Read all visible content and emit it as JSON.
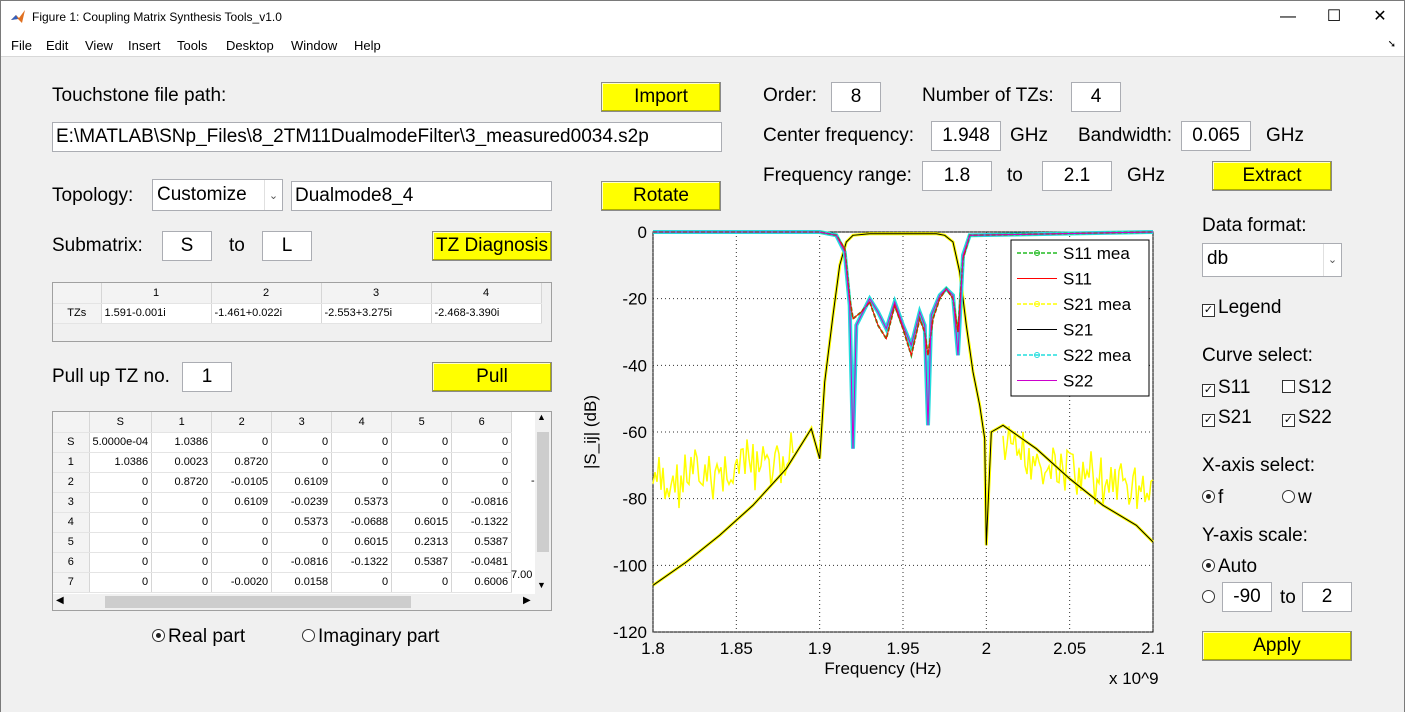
{
  "window": {
    "title": "Figure 1: Coupling Matrix Synthesis Tools_v1.0",
    "min": "—",
    "max": "☐",
    "close": "✕"
  },
  "menu": [
    "File",
    "Edit",
    "View",
    "Insert",
    "Tools",
    "Desktop",
    "Window",
    "Help"
  ],
  "touchstone": {
    "label": "Touchstone file path:",
    "path": "E:\\MATLAB\\SNp_Files\\8_2TM11DualmodeFilter\\3_measured0034.s2p",
    "import_btn": "Import"
  },
  "topology": {
    "label": "Topology:",
    "selected": "Customize",
    "name": "Dualmode8_4",
    "rotate_btn": "Rotate"
  },
  "submatrix": {
    "label": "Submatrix:",
    "from": "S",
    "to_label": "to",
    "to": "L",
    "tz_btn": "TZ Diagnosis"
  },
  "tz_table": {
    "columns": [
      "1",
      "2",
      "3",
      "4"
    ],
    "row_label": "TZs",
    "values": [
      "1.591-0.001i",
      "-1.461+0.022i",
      "-2.553+3.275i",
      "-2.468-3.390i"
    ]
  },
  "pull": {
    "label": "Pull up TZ no.",
    "value": "1",
    "btn": "Pull"
  },
  "matrix_table": {
    "columns": [
      "S",
      "1",
      "2",
      "3",
      "4",
      "5",
      "6"
    ],
    "rows": [
      {
        "h": "S",
        "c": [
          "5.0000e-04",
          "1.0386",
          "0",
          "0",
          "0",
          "0",
          "0"
        ]
      },
      {
        "h": "1",
        "c": [
          "1.0386",
          "0.0023",
          "0.8720",
          "0",
          "0",
          "0",
          "0"
        ]
      },
      {
        "h": "2",
        "c": [
          "0",
          "0.8720",
          "-0.0105",
          "0.6109",
          "0",
          "0",
          "0"
        ]
      },
      {
        "h": "3",
        "c": [
          "0",
          "0",
          "0.6109",
          "-0.0239",
          "0.5373",
          "0",
          "-0.0816"
        ]
      },
      {
        "h": "4",
        "c": [
          "0",
          "0",
          "0",
          "0.5373",
          "-0.0688",
          "0.6015",
          "-0.1322"
        ]
      },
      {
        "h": "5",
        "c": [
          "0",
          "0",
          "0",
          "0",
          "0.6015",
          "0.2313",
          "0.5387"
        ]
      },
      {
        "h": "6",
        "c": [
          "0",
          "0",
          "0",
          "-0.0816",
          "-0.1322",
          "0.5387",
          "-0.0481"
        ]
      },
      {
        "h": "7",
        "c": [
          "0",
          "0",
          "-0.0020",
          "0.0158",
          "0",
          "0",
          "0.6006"
        ]
      }
    ],
    "overflow_col_text": "7.00",
    "overflow_row2_text": "-"
  },
  "part": {
    "real": "Real part",
    "imag": "Imaginary part"
  },
  "params": {
    "order_label": "Order:",
    "order": "8",
    "ntz_label": "Number of TZs:",
    "ntz": "4",
    "cf_label": "Center frequency:",
    "cf": "1.948",
    "unit_ghz": "GHz",
    "bw_label": "Bandwidth:",
    "bw": "0.065",
    "fr_label": "Frequency range:",
    "fr_from": "1.8",
    "fr_to_label": "to",
    "fr_to": "2.1",
    "extract_btn": "Extract"
  },
  "right": {
    "data_format_label": "Data format:",
    "data_format": "db",
    "legend_label": "Legend",
    "curve_select_label": "Curve select:",
    "curves": {
      "s11": "S11",
      "s12": "S12",
      "s21": "S21",
      "s22": "S22"
    },
    "xaxis_label": "X-axis select:",
    "x_f": "f",
    "x_w": "w",
    "yscale_label": "Y-axis scale:",
    "auto": "Auto",
    "ymin": "-90",
    "yto": "to",
    "ymax": "2",
    "apply_btn": "Apply",
    "check_mark": "✓"
  },
  "chart_data": {
    "type": "line",
    "xlabel": "Frequency (Hz)",
    "ylabel": "|S_ij| (dB)",
    "x_exponent_label": "x 10^9",
    "xlim": [
      1800000000.0,
      2100000000.0
    ],
    "ylim": [
      -120,
      0
    ],
    "xticks": [
      "1.8",
      "1.85",
      "1.9",
      "1.95",
      "2",
      "2.05",
      "2.1"
    ],
    "yticks": [
      "0",
      "-20",
      "-40",
      "-60",
      "-80",
      "-100",
      "-120"
    ],
    "grid": true,
    "legend_position": "top-right",
    "legend": [
      "S11 mea",
      "S11",
      "S21 mea",
      "S21",
      "S22 mea",
      "S22"
    ],
    "colors": {
      "s11_mea": "#22bb22",
      "s11": "#ff0000",
      "s21_mea": "#ffff00",
      "s21": "#000000",
      "s22_mea": "#22dddd",
      "s22": "#cc00cc"
    },
    "series": [
      {
        "name": "S21",
        "x": [
          1.8,
          1.82,
          1.84,
          1.86,
          1.88,
          1.89,
          1.895,
          1.9,
          1.903,
          1.908,
          1.912,
          1.916,
          1.92,
          1.93,
          1.95,
          1.97,
          1.975,
          1.98,
          1.984,
          1.988,
          1.992,
          1.996,
          1.999,
          2.0,
          2.003,
          2.01,
          2.03,
          2.05,
          2.07,
          2.09,
          2.1
        ],
        "y": [
          -106,
          -99,
          -91,
          -82,
          -71,
          -63,
          -59,
          -68,
          -45,
          -25,
          -10,
          -3,
          -1,
          -0.5,
          -0.5,
          -0.5,
          -1,
          -3,
          -12,
          -28,
          -42,
          -52,
          -62,
          -94,
          -60,
          -58,
          -65,
          -74,
          -82,
          -88,
          -93
        ]
      },
      {
        "name": "S11",
        "x": [
          1.8,
          1.9,
          1.91,
          1.915,
          1.918,
          1.92,
          1.925,
          1.93,
          1.935,
          1.94,
          1.945,
          1.95,
          1.955,
          1.96,
          1.963,
          1.965,
          1.968,
          1.972,
          1.976,
          1.98,
          1.983,
          1.986,
          1.99,
          2.1
        ],
        "y": [
          0,
          0,
          -1,
          -5,
          -20,
          -26,
          -24,
          -21,
          -28,
          -32,
          -22,
          -29,
          -37,
          -26,
          -30,
          -37,
          -26,
          -20,
          -17,
          -20,
          -30,
          -8,
          -1,
          0
        ]
      },
      {
        "name": "S22",
        "x": [
          1.8,
          1.9,
          1.91,
          1.915,
          1.918,
          1.92,
          1.922,
          1.93,
          1.935,
          1.94,
          1.945,
          1.95,
          1.955,
          1.96,
          1.963,
          1.965,
          1.967,
          1.972,
          1.976,
          1.98,
          1.983,
          1.986,
          1.99,
          2.1
        ],
        "y": [
          0,
          0,
          -1,
          -6,
          -22,
          -65,
          -28,
          -20,
          -24,
          -29,
          -21,
          -28,
          -34,
          -24,
          -28,
          -58,
          -25,
          -19,
          -17,
          -19,
          -37,
          -7,
          -1,
          0
        ]
      }
    ]
  }
}
